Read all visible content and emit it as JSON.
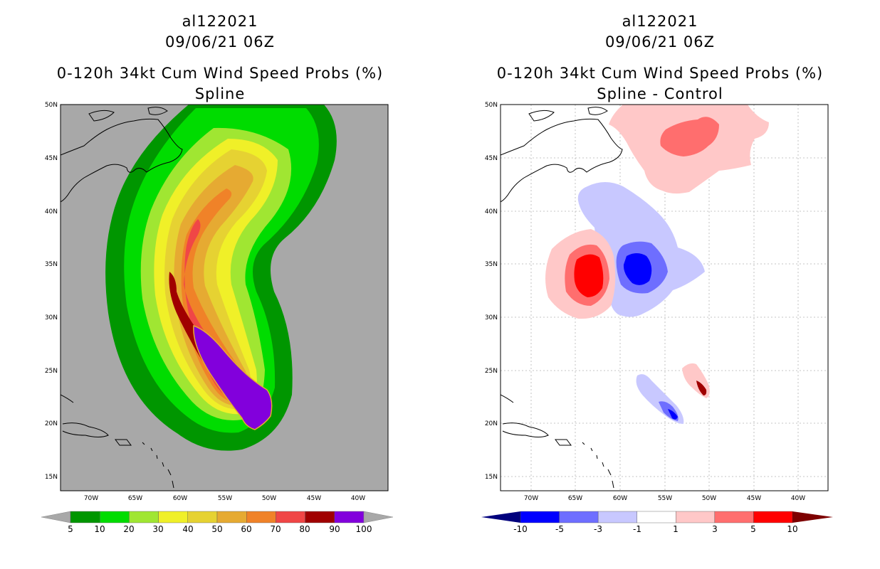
{
  "left_panel": {
    "storm_id": "al122021",
    "datetime": "09/06/21 06Z",
    "product": "0-120h 34kt Cum Wind Speed Probs (%)",
    "subtitle": "Spline",
    "background_color": "#a8a8a8",
    "lat_labels": [
      "50N",
      "45N",
      "40N",
      "35N",
      "30N",
      "25N",
      "20N",
      "15N"
    ],
    "lon_labels": [
      "70W",
      "65W",
      "60W",
      "55W",
      "50W",
      "45W",
      "40W"
    ],
    "colorbar": {
      "labels": [
        "5",
        "10",
        "20",
        "30",
        "40",
        "50",
        "60",
        "70",
        "80",
        "90",
        "100"
      ],
      "colors": [
        "#009600",
        "#00dc00",
        "#a0e632",
        "#f0f028",
        "#e6d232",
        "#e6aa32",
        "#f08228",
        "#f04646",
        "#a00000",
        "#8200dc"
      ],
      "end_color": "#a8a8a8"
    }
  },
  "right_panel": {
    "storm_id": "al122021",
    "datetime": "09/06/21 06Z",
    "product": "0-120h 34kt Cum Wind Speed Probs (%)",
    "subtitle": "Spline - Control",
    "background_color": "#ffffff",
    "lat_labels": [
      "50N",
      "45N",
      "40N",
      "35N",
      "30N",
      "25N",
      "20N",
      "15N"
    ],
    "lon_labels": [
      "70W",
      "65W",
      "60W",
      "55W",
      "50W",
      "45W",
      "40W"
    ],
    "colorbar": {
      "labels": [
        "-10",
        "-5",
        "-3",
        "-1",
        "1",
        "3",
        "5",
        "10"
      ],
      "colors": [
        "#0000ff",
        "#6e6eff",
        "#c8c8ff",
        "#ffffff",
        "#ffc8c8",
        "#ff6e6e",
        "#ff0000"
      ],
      "low_end_color": "#00007d",
      "high_end_color": "#7d0000"
    }
  }
}
